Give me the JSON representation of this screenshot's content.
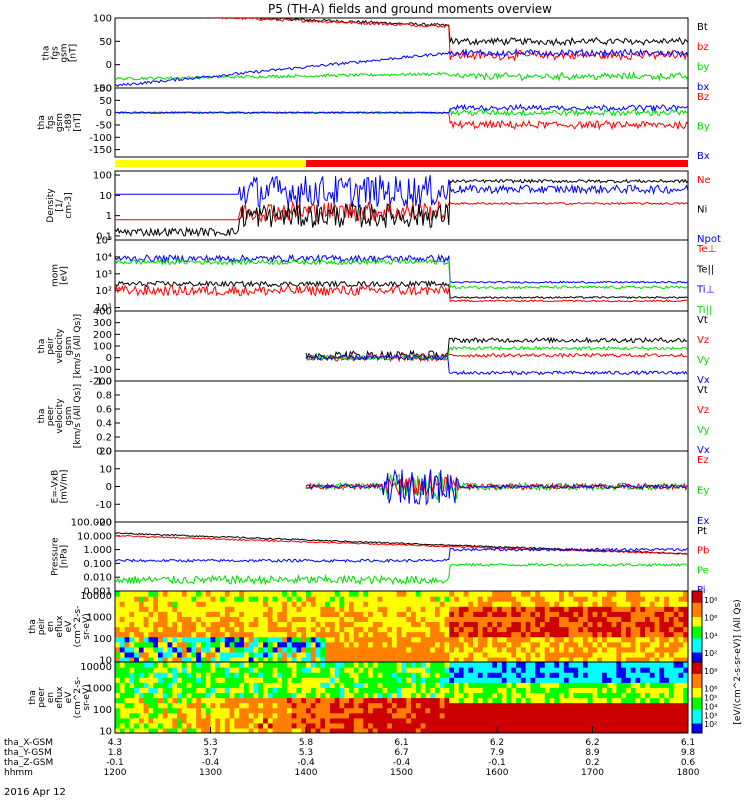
{
  "title": "P5 (TH-A) fields and ground moments overview",
  "date_label": "2016 Apr 12",
  "colors": {
    "black": "#000000",
    "red": "#ff0000",
    "green": "#00dd00",
    "blue": "#0000ff",
    "yellow": "#ffff00"
  },
  "xaxis": {
    "ticks": [
      "1200",
      "1300",
      "1400",
      "1500",
      "1600",
      "1700",
      "1800"
    ],
    "rows": [
      {
        "label": "tha_X-GSM",
        "values": [
          "4.3",
          "5.3",
          "5.8",
          "6.1",
          "6.2",
          "6.2",
          "6.1"
        ]
      },
      {
        "label": "tha_Y-GSM",
        "values": [
          "1.8",
          "3.7",
          "5.3",
          "6.7",
          "7.9",
          "8.9",
          "9.8"
        ]
      },
      {
        "label": "tha_Z-GSM",
        "values": [
          "-0.1",
          "-0.4",
          "-0.4",
          "-0.4",
          "-0.1",
          "0.2",
          "0.6"
        ]
      },
      {
        "label": "hhmm",
        "values": [
          "1200",
          "1300",
          "1400",
          "1500",
          "1600",
          "1700",
          "1800"
        ]
      }
    ]
  },
  "bar_segments": [
    {
      "from": 1200,
      "to": 1400,
      "color": "#ffff00"
    },
    {
      "from": 1400,
      "to": 1800,
      "color": "#ff0000"
    }
  ],
  "panels": [
    {
      "id": "fgs",
      "ylabel": [
        "tha",
        "fgs",
        "gsm",
        "[nT]"
      ],
      "ymin": -50,
      "ymax": 100,
      "ticks": [
        "100",
        "50",
        "0",
        "-50"
      ],
      "tickvals": [
        100,
        50,
        0,
        -50
      ],
      "legend": [
        "Bt",
        "bz",
        "by",
        "bx"
      ],
      "legend_colors": [
        "#000000",
        "#ff0000",
        "#00dd00",
        "#0000ff"
      ]
    },
    {
      "id": "fgsdt",
      "ylabel": [
        "tha",
        "fgs",
        "gsm",
        "-t89",
        "[nT]"
      ],
      "ymin": -180,
      "ymax": 100,
      "ticks": [
        "100",
        "50",
        "0",
        "-50",
        "-100",
        "-150"
      ],
      "tickvals": [
        100,
        50,
        0,
        -50,
        -100,
        -150
      ],
      "legend": [
        "Bz",
        "By",
        "Bx"
      ],
      "legend_colors": [
        "#ff0000",
        "#00dd00",
        "#0000ff"
      ]
    },
    {
      "id": "density",
      "ylabel": [
        "Density",
        "[1/",
        "cm-3]"
      ],
      "log": true,
      "ymin": -1.2,
      "ymax": 2.2,
      "ticks": [
        "100",
        "10",
        "1",
        "0.1"
      ],
      "tickvals": [
        2,
        1,
        0,
        -1
      ],
      "legend": [
        "Ne",
        "Ni",
        "Npot"
      ],
      "legend_colors": [
        "#ff0000",
        "#000000",
        "#0000ff"
      ]
    },
    {
      "id": "temp",
      "ylabel": [
        "mom",
        "[eV]"
      ],
      "log": true,
      "ymin": 0.8,
      "ymax": 5,
      "ticks": [
        "10⁵",
        "10⁴",
        "10³",
        "10²",
        "10¹"
      ],
      "tickvals": [
        5,
        4,
        3,
        2,
        1
      ],
      "legend": [
        "Te⊥",
        "Te||",
        "Ti⊥",
        "Ti||"
      ],
      "legend_colors": [
        "#ff0000",
        "#000000",
        "#0000ff",
        "#00dd00"
      ]
    },
    {
      "id": "peir",
      "ylabel": [
        "tha",
        "peir",
        "velocity",
        "gsm",
        "[km/s (All Qs)]"
      ],
      "ymin": -200,
      "ymax": 400,
      "ticks": [
        "400",
        "300",
        "200",
        "100",
        "0",
        "-100",
        "-200"
      ],
      "tickvals": [
        400,
        300,
        200,
        100,
        0,
        -100,
        -200
      ],
      "legend": [
        "Vt",
        "Vz",
        "Vy",
        "Vx"
      ],
      "legend_colors": [
        "#000000",
        "#ff0000",
        "#00dd00",
        "#0000ff"
      ]
    },
    {
      "id": "peer",
      "ylabel": [
        "tha",
        "peer",
        "velocity",
        "gsm",
        "[km/s (All Qs)]"
      ],
      "ymin": 0,
      "ymax": 1,
      "ticks": [
        "1.0",
        "0.8",
        "0.6",
        "0.4",
        "0.2",
        "0.0"
      ],
      "tickvals": [
        1,
        0.8,
        0.6,
        0.4,
        0.2,
        0
      ],
      "legend": [
        "Vt",
        "Vz",
        "Vy",
        "Vx"
      ],
      "legend_colors": [
        "#000000",
        "#ff0000",
        "#00dd00",
        "#0000ff"
      ]
    },
    {
      "id": "exb",
      "ylabel": [
        "E=-VxB",
        "[mV/m]"
      ],
      "ymin": -20,
      "ymax": 20,
      "ticks": [
        "20",
        "10",
        "0",
        "-10",
        "-20"
      ],
      "tickvals": [
        20,
        10,
        0,
        -10,
        -20
      ],
      "legend": [
        "Ez",
        "Ey",
        "Ex"
      ],
      "legend_colors": [
        "#ff0000",
        "#00dd00",
        "#0000ff"
      ]
    },
    {
      "id": "pressure",
      "ylabel": [
        "Pressure",
        "[nPa]"
      ],
      "log": true,
      "ymin": -3,
      "ymax": 2,
      "ticks": [
        "100.000",
        "10.000",
        "1.000",
        "0.100",
        "0.010",
        "0.001"
      ],
      "tickvals": [
        2,
        1,
        0,
        -1,
        -2,
        -3
      ],
      "legend": [
        "Pt",
        "Pb",
        "Pe",
        "Pi"
      ],
      "legend_colors": [
        "#000000",
        "#ff0000",
        "#00dd00",
        "#0000ff"
      ]
    },
    {
      "id": "peir_en",
      "ylabel": [
        "tha",
        "peir",
        "en",
        "eflux",
        "eV",
        "(cm^2-s-",
        "sr-eV)"
      ],
      "log": true,
      "ymin": 0.9,
      "ymax": 4.2,
      "ticks": [
        "10000",
        "1000",
        "100",
        "10"
      ],
      "tickvals": [
        4,
        3,
        2,
        1
      ],
      "spectrogram": true
    },
    {
      "id": "peer_en",
      "ylabel": [
        "tha",
        "peer",
        "en",
        "eflux",
        "eV",
        "(cm^2-s-",
        "sr-eV)"
      ],
      "log": true,
      "ymin": 0.9,
      "ymax": 4.2,
      "ticks": [
        "10000",
        "1000",
        "100",
        "10"
      ],
      "tickvals": [
        4,
        3,
        2,
        1
      ],
      "spectrogram": true
    }
  ],
  "colorbar": {
    "label": "[eV/(cm^2-s-sr-eV)] (All Qs)",
    "top": {
      "ticks": [
        "10⁸",
        "10⁶",
        "10⁴",
        "10²"
      ],
      "tickvals": [
        8,
        6,
        4,
        2
      ]
    },
    "bottom": {
      "ticks": [
        "10⁸",
        "10⁶",
        "10⁵",
        "10⁴",
        "10³",
        "10²"
      ],
      "tickvals": [
        8,
        6,
        5,
        4,
        3,
        2
      ]
    }
  }
}
